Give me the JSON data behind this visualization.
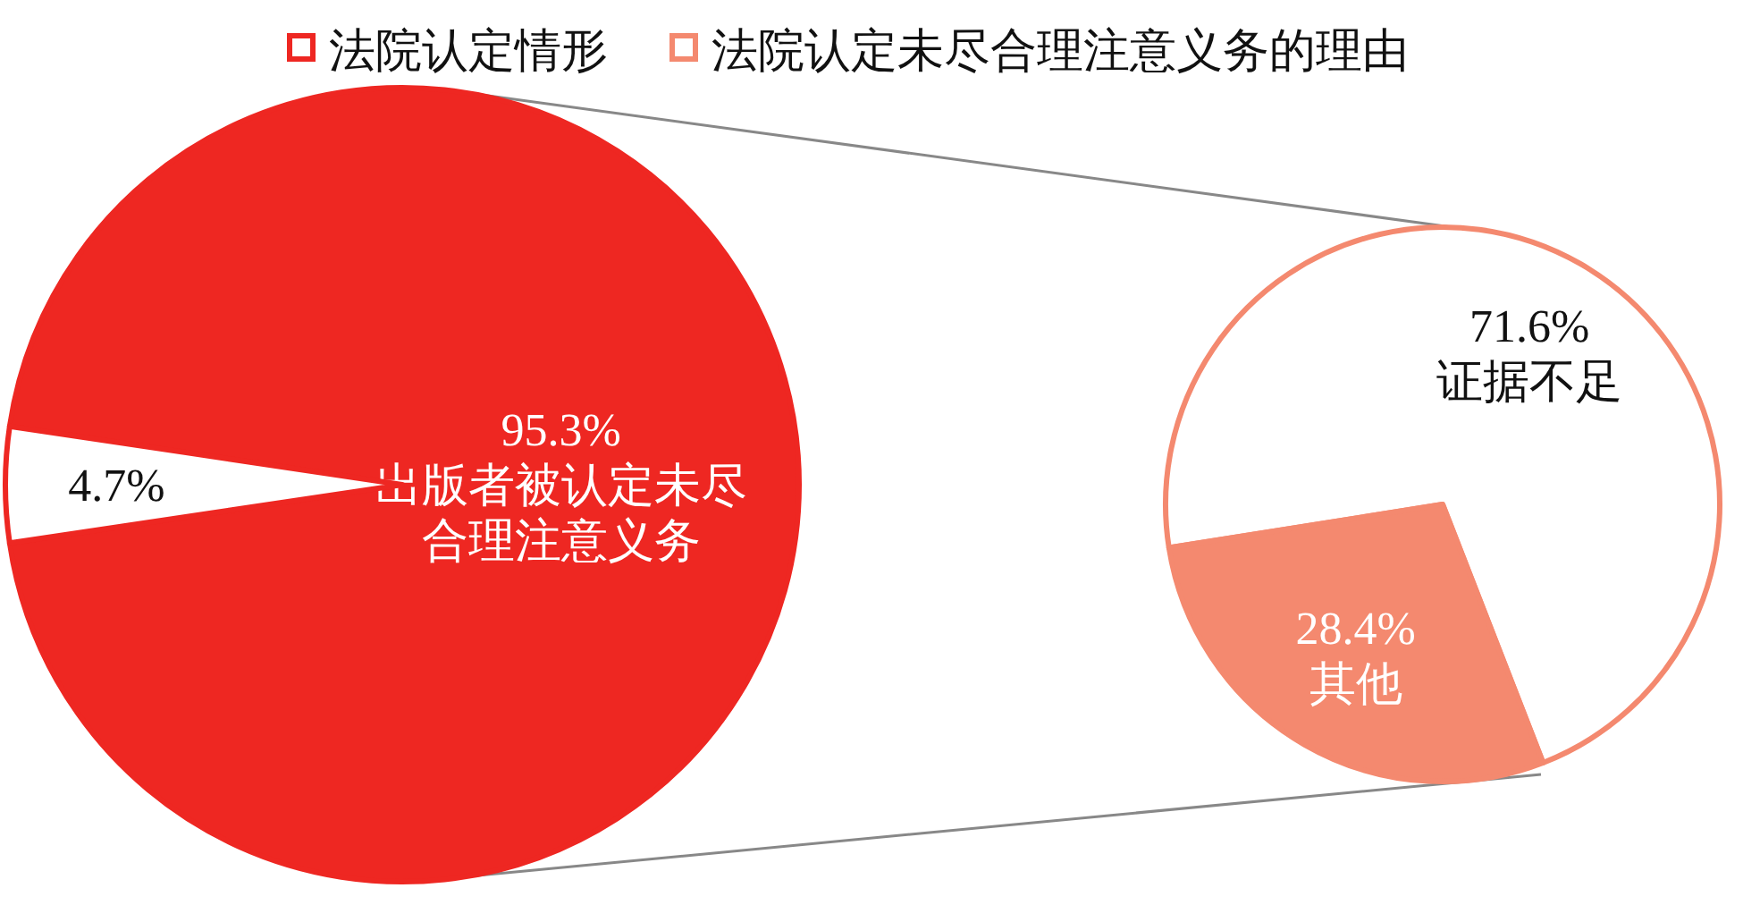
{
  "chart_data": [
    {
      "type": "pie",
      "legend": "top",
      "categories": [
        "出版者被认定未尽合理注意义务",
        null
      ],
      "series": [
        {
          "name": "法院认定情形",
          "color": "#ee2722",
          "values": [
            95.3,
            4.7
          ],
          "value_labels": [
            "95.3%",
            "4.7%"
          ],
          "colors": [
            "#ee2722",
            "#ffffff"
          ]
        }
      ]
    },
    {
      "type": "pie",
      "legend": "top",
      "categories": [
        "证据不足",
        "其他"
      ],
      "series": [
        {
          "name": "法院认定未尽合理注意义务的理由",
          "color": "#f4896f",
          "values": [
            71.6,
            28.4
          ],
          "value_labels": [
            "71.6%",
            "28.4%"
          ],
          "colors": [
            "#ffffff",
            "#f4896f"
          ]
        }
      ]
    }
  ]
}
